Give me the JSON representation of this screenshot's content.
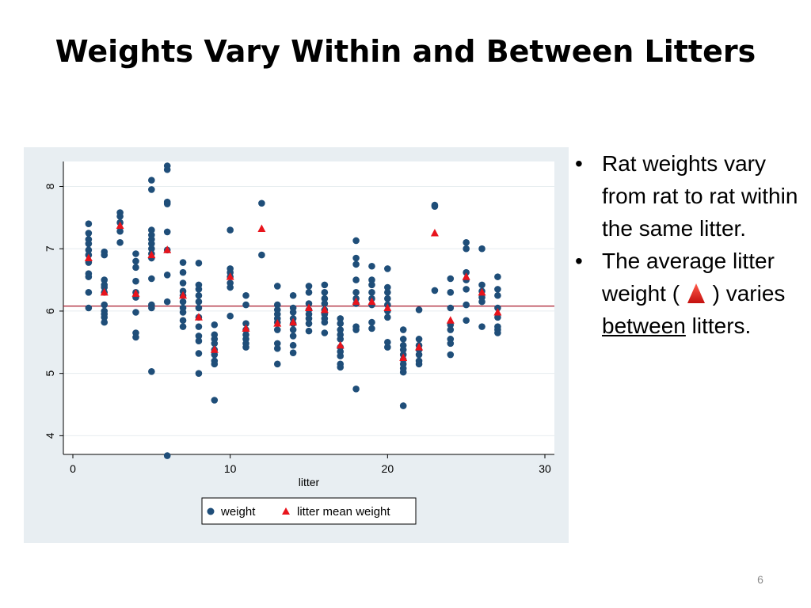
{
  "slide": {
    "title": "Weights Vary Within and Between Litters",
    "page_number": "6",
    "bullets": [
      {
        "text": "Rat weights vary from rat to rat within the same litter."
      },
      {
        "pre": "The average litter weight (",
        "post": " ) varies ",
        "underlined": "between",
        "tail": " litters."
      }
    ]
  },
  "colors": {
    "weight": "#1f4e79",
    "mean": "#e8141c",
    "grand_mean_line": "#a8182a",
    "panel_bg": "#e8eef2"
  },
  "chart_data": {
    "type": "scatter",
    "xlabel": "litter",
    "ylabel": "",
    "xlim": [
      0,
      30
    ],
    "ylim": [
      3.7,
      8.4
    ],
    "xticks": [
      0,
      10,
      20,
      30
    ],
    "yticks": [
      4,
      5,
      6,
      7,
      8
    ],
    "grid": true,
    "legend_position": "bottom",
    "reference_line_y": 6.08,
    "series": [
      {
        "name": "weight",
        "marker": "circle",
        "points": [
          [
            1,
            7.4
          ],
          [
            1,
            7.25
          ],
          [
            1,
            7.15
          ],
          [
            1,
            7.08
          ],
          [
            1,
            6.98
          ],
          [
            1,
            6.9
          ],
          [
            1,
            6.78
          ],
          [
            1,
            6.6
          ],
          [
            1,
            6.55
          ],
          [
            1,
            6.3
          ],
          [
            1,
            6.05
          ],
          [
            2,
            6.95
          ],
          [
            2,
            6.9
          ],
          [
            2,
            6.5
          ],
          [
            2,
            6.42
          ],
          [
            2,
            6.38
          ],
          [
            2,
            6.3
          ],
          [
            2,
            6.1
          ],
          [
            2,
            6.0
          ],
          [
            2,
            5.95
          ],
          [
            2,
            5.9
          ],
          [
            2,
            5.82
          ],
          [
            3,
            7.58
          ],
          [
            3,
            7.52
          ],
          [
            3,
            7.42
          ],
          [
            3,
            7.28
          ],
          [
            3,
            7.1
          ],
          [
            4,
            6.92
          ],
          [
            4,
            6.8
          ],
          [
            4,
            6.7
          ],
          [
            4,
            6.48
          ],
          [
            4,
            6.3
          ],
          [
            4,
            6.22
          ],
          [
            4,
            5.98
          ],
          [
            4,
            5.65
          ],
          [
            4,
            5.58
          ],
          [
            5,
            8.1
          ],
          [
            5,
            7.95
          ],
          [
            5,
            7.3
          ],
          [
            5,
            7.22
          ],
          [
            5,
            7.15
          ],
          [
            5,
            7.08
          ],
          [
            5,
            7.0
          ],
          [
            5,
            6.92
          ],
          [
            5,
            6.85
          ],
          [
            5,
            6.52
          ],
          [
            5,
            6.1
          ],
          [
            5,
            6.05
          ],
          [
            5,
            5.03
          ],
          [
            6,
            8.33
          ],
          [
            6,
            8.27
          ],
          [
            6,
            7.75
          ],
          [
            6,
            7.72
          ],
          [
            6,
            7.27
          ],
          [
            6,
            6.98
          ],
          [
            6,
            6.58
          ],
          [
            6,
            6.15
          ],
          [
            6,
            3.68
          ],
          [
            7,
            6.78
          ],
          [
            7,
            6.62
          ],
          [
            7,
            6.45
          ],
          [
            7,
            6.32
          ],
          [
            7,
            6.25
          ],
          [
            7,
            6.15
          ],
          [
            7,
            6.05
          ],
          [
            7,
            5.98
          ],
          [
            7,
            5.85
          ],
          [
            7,
            5.75
          ],
          [
            8,
            6.77
          ],
          [
            8,
            6.42
          ],
          [
            8,
            6.35
          ],
          [
            8,
            6.25
          ],
          [
            8,
            6.15
          ],
          [
            8,
            6.05
          ],
          [
            8,
            5.9
          ],
          [
            8,
            5.75
          ],
          [
            8,
            5.6
          ],
          [
            8,
            5.52
          ],
          [
            8,
            5.32
          ],
          [
            8,
            5.0
          ],
          [
            9,
            5.78
          ],
          [
            9,
            5.62
          ],
          [
            9,
            5.55
          ],
          [
            9,
            5.48
          ],
          [
            9,
            5.38
          ],
          [
            9,
            5.3
          ],
          [
            9,
            5.2
          ],
          [
            9,
            5.15
          ],
          [
            9,
            4.57
          ],
          [
            10,
            7.3
          ],
          [
            10,
            6.68
          ],
          [
            10,
            6.62
          ],
          [
            10,
            6.55
          ],
          [
            10,
            6.45
          ],
          [
            10,
            6.38
          ],
          [
            10,
            5.92
          ],
          [
            11,
            6.25
          ],
          [
            11,
            6.1
          ],
          [
            11,
            5.8
          ],
          [
            11,
            5.7
          ],
          [
            11,
            5.62
          ],
          [
            11,
            5.55
          ],
          [
            11,
            5.48
          ],
          [
            11,
            5.42
          ],
          [
            12,
            7.73
          ],
          [
            12,
            6.9
          ],
          [
            13,
            6.4
          ],
          [
            13,
            6.1
          ],
          [
            13,
            6.02
          ],
          [
            13,
            5.95
          ],
          [
            13,
            5.88
          ],
          [
            13,
            5.82
          ],
          [
            13,
            5.7
          ],
          [
            13,
            5.48
          ],
          [
            13,
            5.4
          ],
          [
            13,
            5.15
          ],
          [
            14,
            6.25
          ],
          [
            14,
            6.05
          ],
          [
            14,
            5.98
          ],
          [
            14,
            5.88
          ],
          [
            14,
            5.8
          ],
          [
            14,
            5.7
          ],
          [
            14,
            5.6
          ],
          [
            14,
            5.45
          ],
          [
            14,
            5.33
          ],
          [
            15,
            6.4
          ],
          [
            15,
            6.3
          ],
          [
            15,
            6.12
          ],
          [
            15,
            6.02
          ],
          [
            15,
            5.95
          ],
          [
            15,
            5.88
          ],
          [
            15,
            5.8
          ],
          [
            15,
            5.68
          ],
          [
            16,
            6.42
          ],
          [
            16,
            6.3
          ],
          [
            16,
            6.2
          ],
          [
            16,
            6.12
          ],
          [
            16,
            6.02
          ],
          [
            16,
            5.95
          ],
          [
            16,
            5.88
          ],
          [
            16,
            5.82
          ],
          [
            16,
            5.65
          ],
          [
            17,
            5.88
          ],
          [
            17,
            5.8
          ],
          [
            17,
            5.7
          ],
          [
            17,
            5.62
          ],
          [
            17,
            5.55
          ],
          [
            17,
            5.42
          ],
          [
            17,
            5.35
          ],
          [
            17,
            5.28
          ],
          [
            17,
            5.15
          ],
          [
            17,
            5.1
          ],
          [
            18,
            7.13
          ],
          [
            18,
            6.85
          ],
          [
            18,
            6.75
          ],
          [
            18,
            6.5
          ],
          [
            18,
            6.3
          ],
          [
            18,
            6.2
          ],
          [
            18,
            6.12
          ],
          [
            18,
            5.75
          ],
          [
            18,
            5.7
          ],
          [
            18,
            4.75
          ],
          [
            19,
            6.72
          ],
          [
            19,
            6.5
          ],
          [
            19,
            6.42
          ],
          [
            19,
            6.3
          ],
          [
            19,
            6.2
          ],
          [
            19,
            6.1
          ],
          [
            19,
            5.82
          ],
          [
            19,
            5.72
          ],
          [
            20,
            6.68
          ],
          [
            20,
            6.38
          ],
          [
            20,
            6.3
          ],
          [
            20,
            6.2
          ],
          [
            20,
            6.1
          ],
          [
            20,
            6.0
          ],
          [
            20,
            5.9
          ],
          [
            20,
            5.5
          ],
          [
            20,
            5.42
          ],
          [
            21,
            5.7
          ],
          [
            21,
            5.55
          ],
          [
            21,
            5.45
          ],
          [
            21,
            5.38
          ],
          [
            21,
            5.3
          ],
          [
            21,
            5.22
          ],
          [
            21,
            5.15
          ],
          [
            21,
            5.08
          ],
          [
            21,
            5.02
          ],
          [
            21,
            4.48
          ],
          [
            22,
            6.02
          ],
          [
            22,
            5.55
          ],
          [
            22,
            5.45
          ],
          [
            22,
            5.38
          ],
          [
            22,
            5.3
          ],
          [
            22,
            5.2
          ],
          [
            22,
            5.15
          ],
          [
            23,
            7.7
          ],
          [
            23,
            7.68
          ],
          [
            23,
            6.33
          ],
          [
            24,
            6.52
          ],
          [
            24,
            6.3
          ],
          [
            24,
            6.05
          ],
          [
            24,
            5.78
          ],
          [
            24,
            5.7
          ],
          [
            24,
            5.55
          ],
          [
            24,
            5.48
          ],
          [
            24,
            5.3
          ],
          [
            25,
            7.1
          ],
          [
            25,
            7.0
          ],
          [
            25,
            6.62
          ],
          [
            25,
            6.5
          ],
          [
            25,
            6.35
          ],
          [
            25,
            6.1
          ],
          [
            25,
            5.85
          ],
          [
            26,
            7.0
          ],
          [
            26,
            6.42
          ],
          [
            26,
            6.32
          ],
          [
            26,
            6.22
          ],
          [
            26,
            6.15
          ],
          [
            26,
            5.75
          ],
          [
            27,
            6.55
          ],
          [
            27,
            6.35
          ],
          [
            27,
            6.25
          ],
          [
            27,
            6.05
          ],
          [
            27,
            5.9
          ],
          [
            27,
            5.75
          ],
          [
            27,
            5.7
          ],
          [
            27,
            5.65
          ]
        ]
      },
      {
        "name": "litter mean weight",
        "marker": "triangle",
        "points": [
          [
            1,
            6.85
          ],
          [
            2,
            6.3
          ],
          [
            3,
            7.37
          ],
          [
            4,
            6.28
          ],
          [
            5,
            6.9
          ],
          [
            6,
            6.98
          ],
          [
            7,
            6.25
          ],
          [
            8,
            5.9
          ],
          [
            9,
            5.38
          ],
          [
            10,
            6.55
          ],
          [
            11,
            5.72
          ],
          [
            12,
            7.32
          ],
          [
            13,
            5.8
          ],
          [
            14,
            5.82
          ],
          [
            15,
            6.05
          ],
          [
            16,
            6.02
          ],
          [
            17,
            5.45
          ],
          [
            18,
            6.15
          ],
          [
            19,
            6.15
          ],
          [
            20,
            6.05
          ],
          [
            21,
            5.25
          ],
          [
            22,
            5.42
          ],
          [
            23,
            7.25
          ],
          [
            24,
            5.85
          ],
          [
            25,
            6.55
          ],
          [
            26,
            6.3
          ],
          [
            27,
            5.98
          ]
        ]
      }
    ]
  }
}
